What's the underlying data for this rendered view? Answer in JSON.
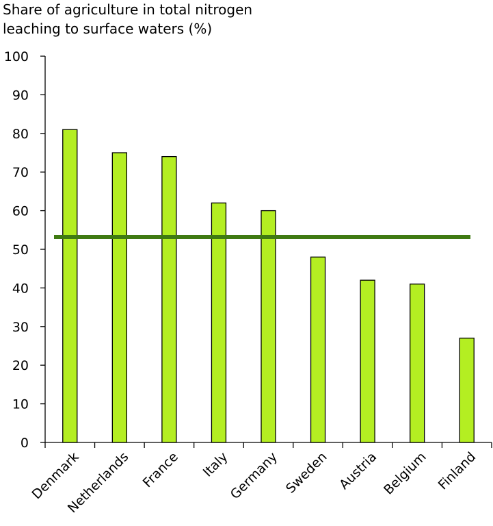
{
  "chart_data": {
    "type": "bar",
    "title_lines": [
      "Share of agriculture in total nitrogen",
      "leaching to surface waters (%)"
    ],
    "xlabel": "",
    "ylabel": "",
    "categories": [
      "Denmark",
      "Netherlands",
      "France",
      "Italy",
      "Germany",
      "Sweden",
      "Austria",
      "Belgium",
      "Finland"
    ],
    "values": [
      81,
      75,
      74,
      62,
      60,
      48,
      42,
      41,
      27
    ],
    "average_line": 53.2,
    "ylim": [
      0,
      100
    ],
    "yticks": [
      "0",
      "10",
      "20",
      "30",
      "40",
      "50",
      "60",
      "70",
      "80",
      "90",
      "100"
    ],
    "grid": false,
    "legend": "none",
    "colors": {
      "bar_fill": "#b4ee22",
      "bar_stroke": "#000000",
      "average_line": "#3f7a12"
    }
  }
}
